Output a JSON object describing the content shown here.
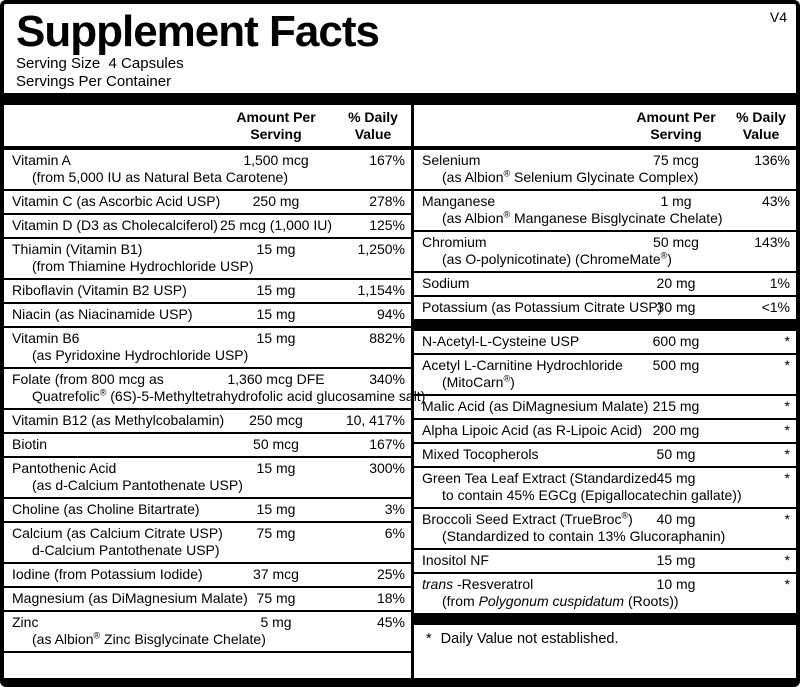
{
  "version_label": "V4",
  "title": "Supplement Facts",
  "serving": {
    "size": "Serving Size  4 Capsules",
    "per_container": "Servings Per Container"
  },
  "headers": {
    "amount": "Amount Per Serving",
    "daily_value": "% Daily Value"
  },
  "footnote": {
    "mark": "*",
    "text": "Daily Value not established."
  },
  "colors": {
    "ink": "#000000",
    "paper": "#ffffff"
  },
  "columns": {
    "left": {
      "rows": [
        {
          "name": "Vitamin A",
          "amount": "1,500 mcg",
          "dv": "167%",
          "sub": "(from 5,000 IU as Natural Beta Carotene)"
        },
        {
          "name": "Vitamin C (as Ascorbic Acid USP)",
          "amount": "250 mg",
          "dv": "278%"
        },
        {
          "name": "Vitamin D (D3 as Cholecalciferol)",
          "amount": "25 mcg (1,000 IU)",
          "dv": "125%"
        },
        {
          "name": "Thiamin (Vitamin B1)",
          "amount": "15 mg",
          "dv": "1,250%",
          "sub": "(from Thiamine Hydrochloride USP)"
        },
        {
          "name": "Riboflavin (Vitamin B2 USP)",
          "amount": "15 mg",
          "dv": "1,154%"
        },
        {
          "name": "Niacin (as Niacinamide USP)",
          "amount": "15 mg",
          "dv": "94%"
        },
        {
          "name": "Vitamin B6",
          "amount": "15 mg",
          "dv": "882%",
          "sub": "(as Pyridoxine Hydrochloride USP)"
        },
        {
          "name": "Folate (from 800 mcg as",
          "amount": "1,360 mcg DFE",
          "dv": "340%",
          "sub": "Quatrefolic® (6S)-5-Methyltetrahydrofolic acid glucosamine salt)"
        },
        {
          "name": "Vitamin B12 (as Methylcobalamin)",
          "amount": "250 mcg",
          "dv": "10, 417%"
        },
        {
          "name": "Biotin",
          "amount": "50 mcg",
          "dv": "167%"
        },
        {
          "name": "Pantothenic Acid",
          "amount": "15 mg",
          "dv": "300%",
          "sub": "(as d-Calcium Pantothenate USP)"
        },
        {
          "name": "Choline (as Choline Bitartrate)",
          "amount": "15 mg",
          "dv": "3%"
        },
        {
          "name": "Calcium (as Calcium Citrate USP)",
          "amount": "75 mg",
          "dv": "6%",
          "sub": "d-Calcium Pantothenate USP)"
        },
        {
          "name": "Iodine (from Potassium Iodide)",
          "amount": "37 mcg",
          "dv": "25%"
        },
        {
          "name": "Magnesium (as DiMagnesium Malate)",
          "amount": "75 mg",
          "dv": "18%"
        },
        {
          "name": "Zinc",
          "amount": "5 mg",
          "dv": "45%",
          "sub": "(as Albion® Zinc Bisglycinate Chelate)"
        }
      ]
    },
    "right": {
      "groups": [
        {
          "rows": [
            {
              "name": "Selenium",
              "amount": "75 mcg",
              "dv": "136%",
              "sub": "(as Albion® Selenium Glycinate Complex)"
            },
            {
              "name": "Manganese",
              "amount": "1 mg",
              "dv": "43%",
              "sub": "(as Albion® Manganese Bisglycinate Chelate)"
            },
            {
              "name": "Chromium",
              "amount": "50 mcg",
              "dv": "143%",
              "sub": "(as O-polynicotinate) (ChromeMate®)"
            },
            {
              "name": "Sodium",
              "amount": "20 mg",
              "dv": "1%"
            },
            {
              "name": "Potassium (as Potassium Citrate USP)",
              "amount": "30 mg",
              "dv": "<1%"
            }
          ]
        },
        {
          "rows": [
            {
              "name": "N-Acetyl-L-Cysteine USP",
              "amount": "600 mg",
              "dv": "*"
            },
            {
              "name": "Acetyl L-Carnitine Hydrochloride",
              "amount": "500 mg",
              "dv": "*",
              "sub": "(MitoCarn®)"
            },
            {
              "name": "Malic Acid (as DiMagnesium Malate)",
              "amount": "215 mg",
              "dv": "*"
            },
            {
              "name": "Alpha Lipoic Acid (as R-Lipoic Acid)",
              "amount": "200 mg",
              "dv": "*"
            },
            {
              "name": "Mixed Tocopherols",
              "amount": "50 mg",
              "dv": "*"
            },
            {
              "name": "Green Tea Leaf Extract (Standardized",
              "amount": "45 mg",
              "dv": "*",
              "sub": "to contain 45% EGCg (Epigallocatechin gallate))"
            },
            {
              "name": "Broccoli Seed Extract (TrueBroc®)",
              "amount": "40 mg",
              "dv": "*",
              "sub": "(Standardized to contain 13% Glucoraphanin)"
            },
            {
              "name": "Inositol NF",
              "amount": "15 mg",
              "dv": "*"
            },
            {
              "name_parts": [
                {
                  "t": "trans ",
                  "i": true
                },
                {
                  "t": "-Resveratrol"
                }
              ],
              "amount": "10 mg",
              "dv": "*",
              "sub_parts": [
                {
                  "t": "(from "
                },
                {
                  "t": "Polygonum cuspidatum",
                  "i": true
                },
                {
                  "t": " (Roots))"
                }
              ]
            }
          ]
        }
      ]
    }
  }
}
